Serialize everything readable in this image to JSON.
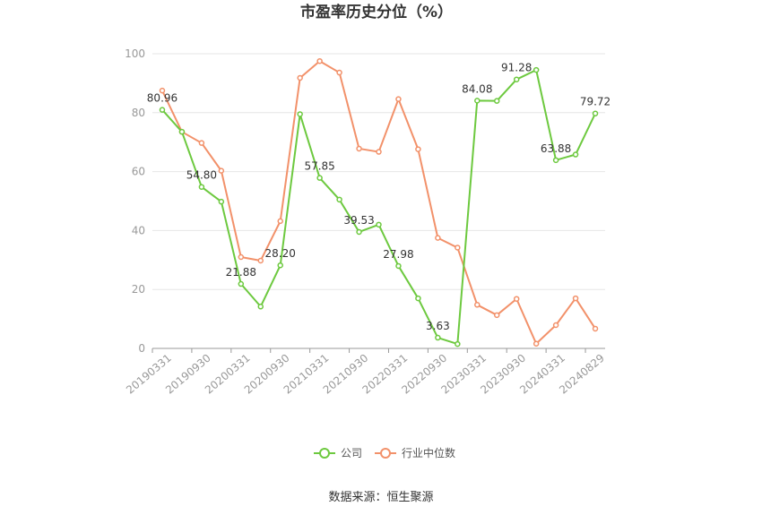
{
  "chart_data": {
    "type": "line",
    "title": "市盈率历史分位（%）",
    "x_tick_labels": [
      "20190331",
      "20190930",
      "20200331",
      "20200930",
      "20210331",
      "20210930",
      "20220331",
      "20220930",
      "20230331",
      "20230930",
      "20240331",
      "20240829"
    ],
    "ylim": [
      0,
      100
    ],
    "y_ticks": [
      0,
      20,
      40,
      60,
      80,
      100
    ],
    "grid": true,
    "legend_position": "bottom",
    "series": [
      {
        "name": "公司",
        "color": "#6dc93f",
        "values": [
          80.96,
          73.5,
          54.8,
          49.8,
          21.88,
          14.2,
          28.2,
          79.5,
          57.85,
          50.5,
          39.53,
          42.0,
          27.98,
          17.0,
          3.63,
          1.5,
          84.08,
          84.0,
          91.28,
          94.5,
          63.88,
          65.8,
          79.72
        ],
        "data_labels": [
          "80.96",
          "",
          "54.80",
          "",
          "21.88",
          "",
          "28.20",
          "",
          "57.85",
          "",
          "39.53",
          "",
          "27.98",
          "",
          "3.63",
          "",
          "84.08",
          "",
          "91.28",
          "",
          "63.88",
          "",
          "79.72"
        ]
      },
      {
        "name": "行业中位数",
        "color": "#f2916a",
        "values": [
          87.5,
          73.5,
          69.7,
          60.3,
          31.0,
          29.8,
          43.2,
          91.8,
          97.5,
          93.6,
          67.8,
          66.7,
          84.6,
          67.6,
          37.5,
          34.2,
          14.8,
          11.3,
          16.8,
          1.6,
          7.9,
          17.0,
          6.7
        ]
      }
    ]
  },
  "source": "数据来源：恒生聚源"
}
